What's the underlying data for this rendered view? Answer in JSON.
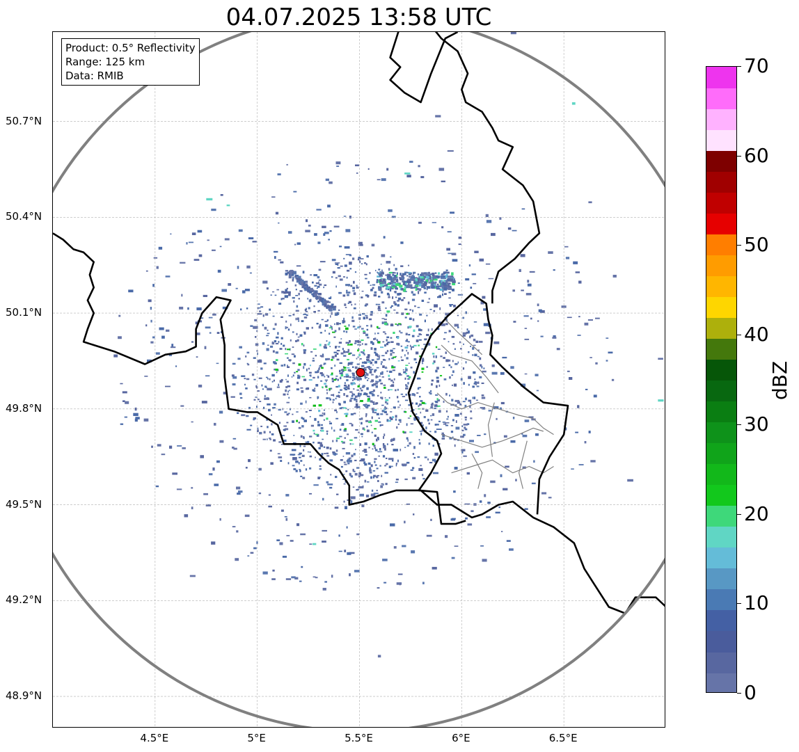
{
  "title": "04.07.2025 13:58 UTC",
  "info_box": {
    "product": "Product: 0.5° Reflectivity",
    "range": "Range: 125 km",
    "data": "Data: RMIB"
  },
  "axes": {
    "lon_min": 4.0,
    "lon_max": 7.0,
    "lat_min": 48.8,
    "lat_max": 50.98,
    "lon_ticks": [
      {
        "value": 4.5,
        "label": "4.5°E"
      },
      {
        "value": 5.0,
        "label": "5°E"
      },
      {
        "value": 5.5,
        "label": "5.5°E"
      },
      {
        "value": 6.0,
        "label": "6°E"
      },
      {
        "value": 6.5,
        "label": "6.5°E"
      }
    ],
    "lat_ticks": [
      {
        "value": 50.7,
        "label": "50.7°N"
      },
      {
        "value": 50.4,
        "label": "50.4°N"
      },
      {
        "value": 50.1,
        "label": "50.1°N"
      },
      {
        "value": 49.8,
        "label": "49.8°N"
      },
      {
        "value": 49.5,
        "label": "49.5°N"
      },
      {
        "value": 49.2,
        "label": "49.2°N"
      },
      {
        "value": 48.9,
        "label": "48.9°N"
      }
    ],
    "grid": true
  },
  "radar": {
    "site_lon": 5.505,
    "site_lat": 49.914,
    "range_km": 125
  },
  "colorbar": {
    "label": "dBZ",
    "min": 0,
    "max": 70,
    "step": 2.5,
    "ticks": [
      "0",
      "10",
      "20",
      "30",
      "40",
      "50",
      "60",
      "70"
    ],
    "colors": [
      "#6674a8",
      "#5867a0",
      "#4a5c9c",
      "#4460a4",
      "#4a7ab4",
      "#5898c4",
      "#64bcd8",
      "#60d6c4",
      "#3ed87a",
      "#12c81c",
      "#12b81a",
      "#10a41a",
      "#0e921a",
      "#0a7e12",
      "#086810",
      "#065608",
      "#44780c",
      "#adb00c",
      "#fed600",
      "#ffb600",
      "#ff9c00",
      "#ff7e00",
      "#e60000",
      "#c00000",
      "#a00000",
      "#7e0000",
      "#ffe2ff",
      "#ffb2ff",
      "#ff6cfa",
      "#ee34ee"
    ]
  },
  "chart_data": {
    "type": "heatmap",
    "title": "04.07.2025 13:58 UTC",
    "colorbar_label": "dBZ",
    "colorbar_range": [
      0,
      70
    ],
    "xlim": [
      4.0,
      7.0
    ],
    "ylim": [
      48.8,
      50.98
    ],
    "note_values_dbz": "mostly 0-10 dBZ light returns with scattered 15-25 dBZ cells near the radar site"
  },
  "borders": {
    "national": [
      [
        [
          4.0,
          50.35
        ],
        [
          4.05,
          50.33
        ],
        [
          4.1,
          50.3
        ],
        [
          4.15,
          50.29
        ],
        [
          4.2,
          50.26
        ],
        [
          4.18,
          50.22
        ],
        [
          4.2,
          50.18
        ],
        [
          4.17,
          50.14
        ],
        [
          4.2,
          50.1
        ],
        [
          4.17,
          50.05
        ],
        [
          4.15,
          50.01
        ],
        [
          4.2,
          50.0
        ],
        [
          4.3,
          49.98
        ],
        [
          4.45,
          49.94
        ],
        [
          4.55,
          49.97
        ],
        [
          4.65,
          49.98
        ],
        [
          4.7,
          49.995
        ],
        [
          4.7,
          50.05
        ],
        [
          4.73,
          50.1
        ],
        [
          4.8,
          50.15
        ],
        [
          4.87,
          50.14
        ],
        [
          4.82,
          50.08
        ],
        [
          4.84,
          50.0
        ],
        [
          4.84,
          49.9
        ],
        [
          4.86,
          49.8
        ],
        [
          4.95,
          49.79
        ],
        [
          5.0,
          49.79
        ],
        [
          5.05,
          49.77
        ],
        [
          5.1,
          49.75
        ],
        [
          5.13,
          49.69
        ],
        [
          5.2,
          49.69
        ],
        [
          5.26,
          49.69
        ],
        [
          5.3,
          49.66
        ],
        [
          5.35,
          49.63
        ],
        [
          5.4,
          49.61
        ],
        [
          5.45,
          49.56
        ],
        [
          5.45,
          49.5
        ],
        [
          5.52,
          49.51
        ],
        [
          5.6,
          49.53
        ],
        [
          5.68,
          49.545
        ],
        [
          5.8,
          49.545
        ],
        [
          5.88,
          49.5
        ],
        [
          5.95,
          49.5
        ],
        [
          6.05,
          49.46
        ],
        [
          6.1,
          49.47
        ],
        [
          6.18,
          49.5
        ],
        [
          6.25,
          49.51
        ],
        [
          6.35,
          49.46
        ],
        [
          6.45,
          49.43
        ],
        [
          6.55,
          49.38
        ],
        [
          6.6,
          49.3
        ],
        [
          6.65,
          49.25
        ],
        [
          6.72,
          49.18
        ],
        [
          6.8,
          49.16
        ],
        [
          6.85,
          49.21
        ],
        [
          6.95,
          49.21
        ],
        [
          7.0,
          49.18
        ]
      ],
      [
        [
          5.79,
          49.545
        ],
        [
          5.88,
          49.54
        ],
        [
          5.9,
          49.44
        ],
        [
          5.97,
          49.44
        ],
        [
          6.02,
          49.45
        ]
      ],
      [
        [
          5.79,
          49.545
        ],
        [
          5.85,
          49.6
        ],
        [
          5.9,
          49.66
        ],
        [
          5.88,
          49.7
        ],
        [
          5.82,
          49.73
        ],
        [
          5.76,
          49.79
        ],
        [
          5.74,
          49.85
        ],
        [
          5.77,
          49.9
        ],
        [
          5.8,
          49.96
        ],
        [
          5.85,
          50.03
        ],
        [
          5.93,
          50.09
        ],
        [
          6.0,
          50.13
        ],
        [
          6.05,
          50.16
        ],
        [
          6.12,
          50.13
        ],
        [
          6.13,
          50.08
        ],
        [
          6.15,
          50.03
        ],
        [
          6.14,
          49.97
        ],
        [
          6.2,
          49.93
        ],
        [
          6.3,
          49.87
        ],
        [
          6.4,
          49.82
        ],
        [
          6.52,
          49.81
        ],
        [
          6.5,
          49.72
        ],
        [
          6.43,
          49.65
        ],
        [
          6.38,
          49.58
        ],
        [
          6.37,
          49.47
        ]
      ],
      [
        [
          6.15,
          50.13
        ],
        [
          6.15,
          50.17
        ],
        [
          6.18,
          50.23
        ],
        [
          6.26,
          50.27
        ],
        [
          6.33,
          50.32
        ],
        [
          6.38,
          50.35
        ],
        [
          6.35,
          50.45
        ],
        [
          6.3,
          50.5
        ],
        [
          6.2,
          50.55
        ],
        [
          6.25,
          50.62
        ],
        [
          6.18,
          50.64
        ],
        [
          6.15,
          50.68
        ],
        [
          6.1,
          50.73
        ],
        [
          6.02,
          50.76
        ],
        [
          6.0,
          50.8
        ],
        [
          6.03,
          50.85
        ],
        [
          5.98,
          50.92
        ],
        [
          5.9,
          50.96
        ],
        [
          5.85,
          51.0
        ]
      ],
      [
        [
          5.7,
          51.0
        ],
        [
          5.65,
          50.9
        ],
        [
          5.7,
          50.87
        ],
        [
          5.65,
          50.83
        ],
        [
          5.72,
          50.79
        ],
        [
          5.8,
          50.76
        ],
        [
          5.85,
          50.85
        ],
        [
          5.92,
          50.96
        ],
        [
          5.98,
          50.98
        ]
      ]
    ],
    "regional": [
      [
        [
          5.88,
          49.85
        ],
        [
          5.93,
          49.82
        ],
        [
          6.0,
          49.8
        ],
        [
          6.08,
          49.82
        ],
        [
          6.18,
          49.8
        ],
        [
          6.28,
          49.78
        ],
        [
          6.35,
          49.77
        ],
        [
          6.4,
          49.74
        ],
        [
          6.45,
          49.72
        ]
      ],
      [
        [
          5.9,
          49.72
        ],
        [
          6.0,
          49.7
        ],
        [
          6.1,
          49.68
        ],
        [
          6.2,
          49.7
        ],
        [
          6.28,
          49.72
        ],
        [
          6.35,
          49.74
        ],
        [
          6.4,
          49.73
        ]
      ],
      [
        [
          5.95,
          49.6
        ],
        [
          6.05,
          49.62
        ],
        [
          6.15,
          49.64
        ],
        [
          6.25,
          49.6
        ],
        [
          6.33,
          49.62
        ],
        [
          6.4,
          49.6
        ],
        [
          6.45,
          49.62
        ]
      ],
      [
        [
          5.9,
          50.0
        ],
        [
          5.95,
          49.97
        ],
        [
          6.05,
          49.95
        ],
        [
          6.12,
          49.9
        ],
        [
          6.18,
          49.85
        ]
      ],
      [
        [
          5.92,
          50.08
        ],
        [
          5.98,
          50.04
        ],
        [
          6.05,
          50.0
        ],
        [
          6.1,
          49.97
        ]
      ],
      [
        [
          6.15,
          49.65
        ],
        [
          6.13,
          49.75
        ],
        [
          6.16,
          49.82
        ]
      ],
      [
        [
          6.08,
          49.55
        ],
        [
          6.1,
          49.6
        ],
        [
          6.05,
          49.66
        ]
      ],
      [
        [
          6.3,
          49.55
        ],
        [
          6.28,
          49.6
        ],
        [
          6.32,
          49.7
        ]
      ]
    ]
  }
}
